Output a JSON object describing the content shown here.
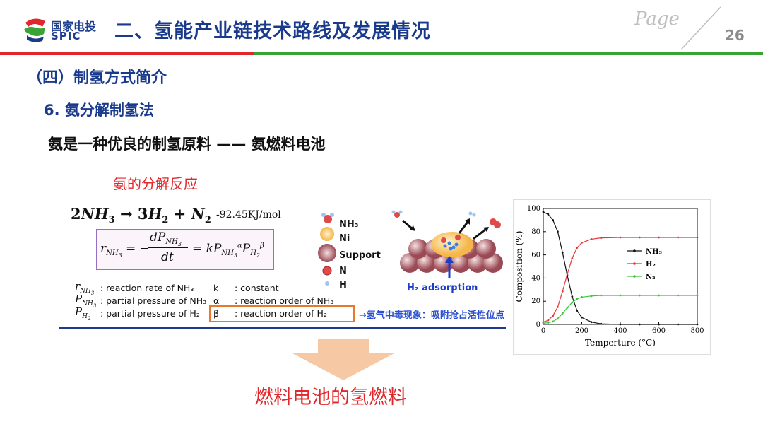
{
  "header": {
    "logo_cn": "国家电投",
    "logo_en": "SPIC",
    "title": "二、氢能产业链技术路线及发展情况",
    "page_word": "Page",
    "page_number": "26",
    "colors": {
      "red": "#e0282c",
      "green": "#3aa335",
      "navy": "#1a3a8c"
    }
  },
  "section": {
    "title": "（四）制氢方式简介",
    "subtitle": "6. 氨分解制氢法",
    "heading": "氨是一种优良的制氢原料 —— 氨燃料电池"
  },
  "reaction": {
    "label": "氨的分解反应",
    "heat": "-92.45KJ/mol"
  },
  "definitions": [
    {
      "desc": ": reaction rate of NH₃"
    },
    {
      "desc": ": partial pressure of NH₃"
    },
    {
      "desc": ": partial pressure of H₂"
    }
  ],
  "definitions_right": [
    {
      "sym": "k",
      "desc": ": constant"
    },
    {
      "sym": "α",
      "desc": ": reaction order of NH₃"
    },
    {
      "sym": "β",
      "desc": ": reaction order of H₂"
    }
  ],
  "legend": [
    {
      "label": "NH₃",
      "icon": "nh3-molecule-icon"
    },
    {
      "label": "Ni",
      "icon": "ni-particle-icon"
    },
    {
      "label": "Support",
      "icon": "support-sphere-icon"
    },
    {
      "label": "N",
      "icon": "n-atom-icon"
    },
    {
      "label": "H",
      "icon": "h-atom-icon"
    }
  ],
  "adsorption_label": "H₂ adsorption",
  "poison_note": "→氢气中毒现象：吸附抢占活性位点",
  "footer": "燃料电池的氢燃料",
  "chart_data": {
    "type": "line",
    "xlabel": "Temperture (°C)",
    "ylabel": "Composition (%)",
    "xlim": [
      0,
      800
    ],
    "ylim": [
      0,
      100
    ],
    "xticks": [
      0,
      200,
      400,
      600,
      800
    ],
    "yticks": [
      0,
      20,
      40,
      60,
      80,
      100
    ],
    "legend_position": "center-right",
    "series": [
      {
        "name": "NH₃",
        "color": "#111111",
        "x": [
          0,
          25,
          50,
          75,
          100,
          125,
          150,
          175,
          200,
          250,
          300,
          400,
          500,
          600,
          700,
          800
        ],
        "y": [
          97,
          95,
          90,
          80,
          62,
          42,
          24,
          12,
          6,
          2,
          0.5,
          0,
          0,
          0,
          0,
          0
        ]
      },
      {
        "name": "H₂",
        "color": "#e8353a",
        "x": [
          0,
          25,
          50,
          75,
          100,
          125,
          150,
          175,
          200,
          250,
          300,
          400,
          500,
          600,
          700,
          800
        ],
        "y": [
          2,
          3.5,
          7.5,
          15,
          28.5,
          43.5,
          57,
          66,
          70.5,
          73.5,
          74.6,
          75,
          75,
          75,
          75,
          75
        ]
      },
      {
        "name": "N₂",
        "color": "#3bc43b",
        "x": [
          0,
          25,
          50,
          75,
          100,
          125,
          150,
          175,
          200,
          250,
          300,
          400,
          500,
          600,
          700,
          800
        ],
        "y": [
          1,
          1.5,
          2.5,
          5,
          9.5,
          14.5,
          19,
          22,
          23.5,
          24.5,
          25,
          25,
          25,
          25,
          25,
          25
        ]
      }
    ]
  }
}
